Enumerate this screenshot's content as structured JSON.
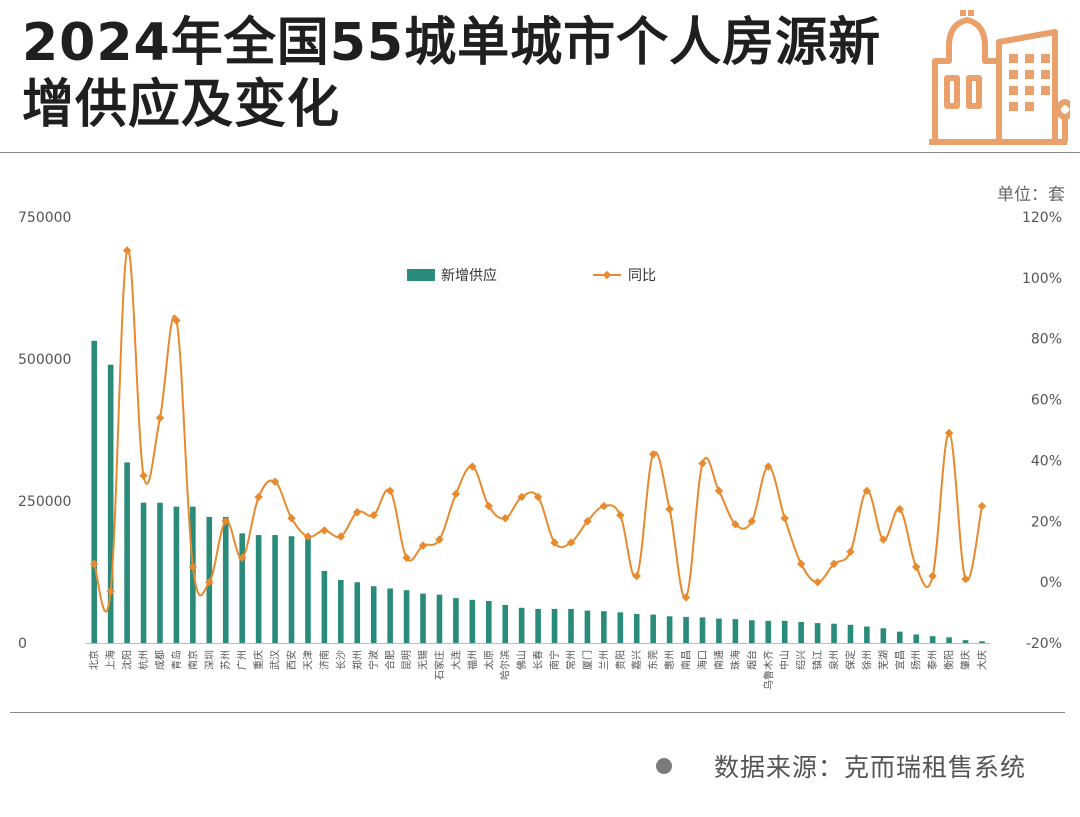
{
  "title": "2024年全国55城单城市个人房源新增供应及变化",
  "unit": "单位：套",
  "source": "数据来源：克而瑞租售系统",
  "colors": {
    "bar": "#2a8b7b",
    "line": "#e8892e",
    "title": "#1f1f1f",
    "icon": "#e9a06a"
  },
  "icon": "city-buildings-icon",
  "chart_data": {
    "type": "bar",
    "legend_position": "top-center",
    "grid": false,
    "categories": [
      "北京",
      "上海",
      "沈阳",
      "杭州",
      "成都",
      "青岛",
      "南京",
      "深圳",
      "苏州",
      "广州",
      "重庆",
      "武汉",
      "西安",
      "天津",
      "济南",
      "长沙",
      "郑州",
      "宁波",
      "合肥",
      "昆明",
      "无锡",
      "石家庄",
      "大连",
      "福州",
      "太原",
      "哈尔滨",
      "佛山",
      "长春",
      "南宁",
      "常州",
      "厦门",
      "兰州",
      "贵阳",
      "嘉兴",
      "东莞",
      "惠州",
      "南昌",
      "海口",
      "南通",
      "珠海",
      "烟台",
      "乌鲁木齐",
      "中山",
      "绍兴",
      "镇江",
      "泉州",
      "保定",
      "徐州",
      "芜湖",
      "宜昌",
      "扬州",
      "泰州",
      "衡阳",
      "肇庆",
      "大庆"
    ],
    "series": [
      {
        "name": "新增供应",
        "type": "bar",
        "axis": "left",
        "values": [
          532000,
          490000,
          318000,
          247000,
          247000,
          240000,
          240000,
          222000,
          222000,
          193000,
          190000,
          190000,
          188000,
          188000,
          127000,
          111000,
          107000,
          100000,
          96000,
          93000,
          87000,
          85000,
          79000,
          76000,
          74000,
          67000,
          62000,
          60000,
          60000,
          60000,
          57000,
          56000,
          54000,
          51000,
          50000,
          47000,
          46000,
          45000,
          43000,
          42000,
          40000,
          39000,
          39000,
          37000,
          35000,
          34000,
          32000,
          29000,
          26000,
          20000,
          15000,
          12000,
          10000,
          5000,
          3000
        ]
      },
      {
        "name": "同比",
        "type": "line",
        "axis": "right",
        "values": [
          6,
          -3,
          109,
          35,
          54,
          86,
          5,
          0,
          20,
          8,
          28,
          33,
          21,
          15,
          17,
          15,
          23,
          22,
          30,
          8,
          12,
          14,
          29,
          38,
          25,
          21,
          28,
          28,
          13,
          13,
          20,
          25,
          22,
          2,
          42,
          24,
          -5,
          39,
          30,
          19,
          20,
          38,
          21,
          6,
          0,
          6,
          10,
          30,
          14,
          24,
          5,
          2,
          49,
          1,
          25
        ]
      }
    ],
    "y_left": {
      "min": 0,
      "max": 750000,
      "ticks": [
        "0",
        "250000",
        "500000",
        "750000"
      ]
    },
    "y_right": {
      "min": -20,
      "max": 120,
      "ticks": [
        "-20%",
        "0%",
        "20%",
        "40%",
        "60%",
        "80%",
        "100%",
        "120%"
      ]
    }
  }
}
